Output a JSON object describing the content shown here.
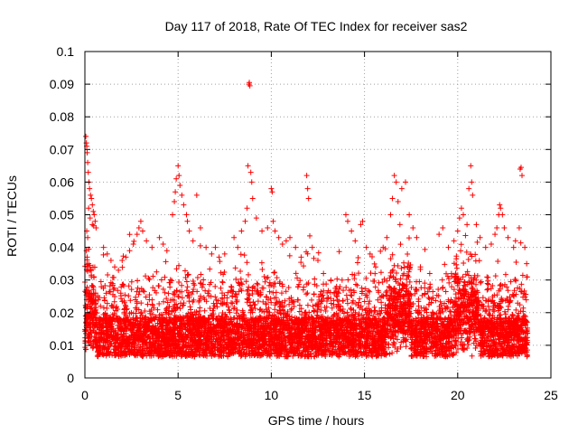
{
  "chart_data": {
    "type": "scatter",
    "title": "Day 117 of 2018, Rate Of TEC Index for receiver sas2",
    "xlabel": "GPS time / hours",
    "ylabel": "ROTI / TECUs",
    "xlim": [
      0,
      25
    ],
    "ylim": [
      0,
      0.1
    ],
    "x_ticks": [
      0,
      5,
      10,
      15,
      20,
      25
    ],
    "x_tick_labels": [
      "0",
      "5",
      "10",
      "15",
      "20",
      "25"
    ],
    "y_ticks": [
      0,
      0.01,
      0.02,
      0.03,
      0.04,
      0.05,
      0.06,
      0.07,
      0.08,
      0.09,
      0.1
    ],
    "y_tick_labels": [
      "0",
      "0.01",
      "0.02",
      "0.03",
      "0.04",
      "0.05",
      "0.06",
      "0.07",
      "0.08",
      "0.09",
      "0.1"
    ],
    "grid": true,
    "marker": "+",
    "color": "#ff0000",
    "series": [
      {
        "name": "ROTI",
        "x_range": [
          0,
          23.75
        ],
        "points": [
          [
            0.05,
            0.074
          ],
          [
            0.08,
            0.072
          ],
          [
            0.1,
            0.071
          ],
          [
            0.12,
            0.069
          ],
          [
            0.15,
            0.066
          ],
          [
            0.18,
            0.063
          ],
          [
            0.22,
            0.06
          ],
          [
            0.25,
            0.058
          ],
          [
            0.3,
            0.056
          ],
          [
            0.35,
            0.055
          ],
          [
            0.4,
            0.053
          ],
          [
            0.45,
            0.051
          ],
          [
            0.5,
            0.05
          ],
          [
            0.55,
            0.048
          ],
          [
            0.6,
            0.046
          ],
          [
            0.2,
            0.052
          ],
          [
            0.28,
            0.049
          ],
          [
            0.4,
            0.047
          ],
          [
            0.1,
            0.045
          ],
          [
            0.15,
            0.043
          ],
          [
            0.08,
            0.039
          ],
          [
            0.12,
            0.037
          ],
          [
            0.2,
            0.035
          ],
          [
            0.25,
            0.033
          ],
          [
            0.35,
            0.031
          ],
          [
            1.0,
            0.04
          ],
          [
            1.2,
            0.038
          ],
          [
            1.4,
            0.036
          ],
          [
            1.6,
            0.034
          ],
          [
            1.8,
            0.033
          ],
          [
            2.0,
            0.036
          ],
          [
            2.2,
            0.037
          ],
          [
            2.4,
            0.039
          ],
          [
            2.6,
            0.041
          ],
          [
            2.8,
            0.044
          ],
          [
            2.9,
            0.046
          ],
          [
            3.0,
            0.048
          ],
          [
            3.1,
            0.045
          ],
          [
            3.3,
            0.042
          ],
          [
            3.6,
            0.04
          ],
          [
            4.0,
            0.043
          ],
          [
            4.2,
            0.041
          ],
          [
            4.4,
            0.039
          ],
          [
            4.7,
            0.05
          ],
          [
            4.8,
            0.054
          ],
          [
            4.85,
            0.057
          ],
          [
            4.9,
            0.061
          ],
          [
            5.0,
            0.065
          ],
          [
            5.05,
            0.062
          ],
          [
            5.1,
            0.059
          ],
          [
            5.2,
            0.056
          ],
          [
            5.3,
            0.053
          ],
          [
            5.45,
            0.05
          ],
          [
            5.5,
            0.048
          ],
          [
            5.6,
            0.045
          ],
          [
            5.8,
            0.042
          ],
          [
            6.0,
            0.056
          ],
          [
            6.2,
            0.046
          ],
          [
            6.5,
            0.04
          ],
          [
            6.8,
            0.038
          ],
          [
            7.0,
            0.04
          ],
          [
            7.2,
            0.037
          ],
          [
            7.5,
            0.038
          ],
          [
            8.0,
            0.043
          ],
          [
            8.2,
            0.04
          ],
          [
            8.4,
            0.045
          ],
          [
            8.6,
            0.048
          ],
          [
            8.7,
            0.052
          ],
          [
            8.75,
            0.065
          ],
          [
            8.8,
            0.09
          ],
          [
            8.82,
            0.0905
          ],
          [
            8.85,
            0.0895
          ],
          [
            8.9,
            0.063
          ],
          [
            8.95,
            0.06
          ],
          [
            9.0,
            0.055
          ],
          [
            9.2,
            0.049
          ],
          [
            9.5,
            0.045
          ],
          [
            9.8,
            0.046
          ],
          [
            10.0,
            0.058
          ],
          [
            10.05,
            0.057
          ],
          [
            10.1,
            0.048
          ],
          [
            10.2,
            0.045
          ],
          [
            10.4,
            0.043
          ],
          [
            10.6,
            0.041
          ],
          [
            10.8,
            0.042
          ],
          [
            11.0,
            0.043
          ],
          [
            11.3,
            0.04
          ],
          [
            11.6,
            0.037
          ],
          [
            11.9,
            0.062
          ],
          [
            11.95,
            0.058
          ],
          [
            12.0,
            0.055
          ],
          [
            12.2,
            0.04
          ],
          [
            12.5,
            0.036
          ],
          [
            12.8,
            0.032
          ],
          [
            13.2,
            0.03
          ],
          [
            13.5,
            0.028
          ],
          [
            13.8,
            0.03
          ],
          [
            14.0,
            0.05
          ],
          [
            14.1,
            0.048
          ],
          [
            14.3,
            0.045
          ],
          [
            14.5,
            0.042
          ],
          [
            14.8,
            0.047
          ],
          [
            14.9,
            0.048
          ],
          [
            15.1,
            0.04
          ],
          [
            15.3,
            0.038
          ],
          [
            15.6,
            0.034
          ],
          [
            16.0,
            0.04
          ],
          [
            16.2,
            0.043
          ],
          [
            16.4,
            0.05
          ],
          [
            16.5,
            0.055
          ],
          [
            16.6,
            0.062
          ],
          [
            16.7,
            0.06
          ],
          [
            16.8,
            0.054
          ],
          [
            16.9,
            0.047
          ],
          [
            17.0,
            0.058
          ],
          [
            17.2,
            0.06
          ],
          [
            17.4,
            0.05
          ],
          [
            17.6,
            0.046
          ],
          [
            17.8,
            0.043
          ],
          [
            18.0,
            0.034
          ],
          [
            18.5,
            0.032
          ],
          [
            19.0,
            0.044
          ],
          [
            19.2,
            0.046
          ],
          [
            19.5,
            0.04
          ],
          [
            19.8,
            0.042
          ],
          [
            20.0,
            0.045
          ],
          [
            20.1,
            0.049
          ],
          [
            20.2,
            0.052
          ],
          [
            20.3,
            0.05
          ],
          [
            20.5,
            0.047
          ],
          [
            20.6,
            0.058
          ],
          [
            20.7,
            0.065
          ],
          [
            20.75,
            0.06
          ],
          [
            20.8,
            0.056
          ],
          [
            21.0,
            0.047
          ],
          [
            21.2,
            0.043
          ],
          [
            21.5,
            0.04
          ],
          [
            21.8,
            0.041
          ],
          [
            22.0,
            0.044
          ],
          [
            22.1,
            0.046
          ],
          [
            22.2,
            0.05
          ],
          [
            22.25,
            0.053
          ],
          [
            22.3,
            0.052
          ],
          [
            22.4,
            0.05
          ],
          [
            22.5,
            0.046
          ],
          [
            22.7,
            0.043
          ],
          [
            23.0,
            0.04
          ],
          [
            23.1,
            0.042
          ],
          [
            23.3,
            0.046
          ],
          [
            23.35,
            0.064
          ],
          [
            23.4,
            0.0645
          ],
          [
            23.45,
            0.062
          ],
          [
            23.6,
            0.04
          ],
          [
            23.7,
            0.035
          ]
        ]
      }
    ]
  }
}
